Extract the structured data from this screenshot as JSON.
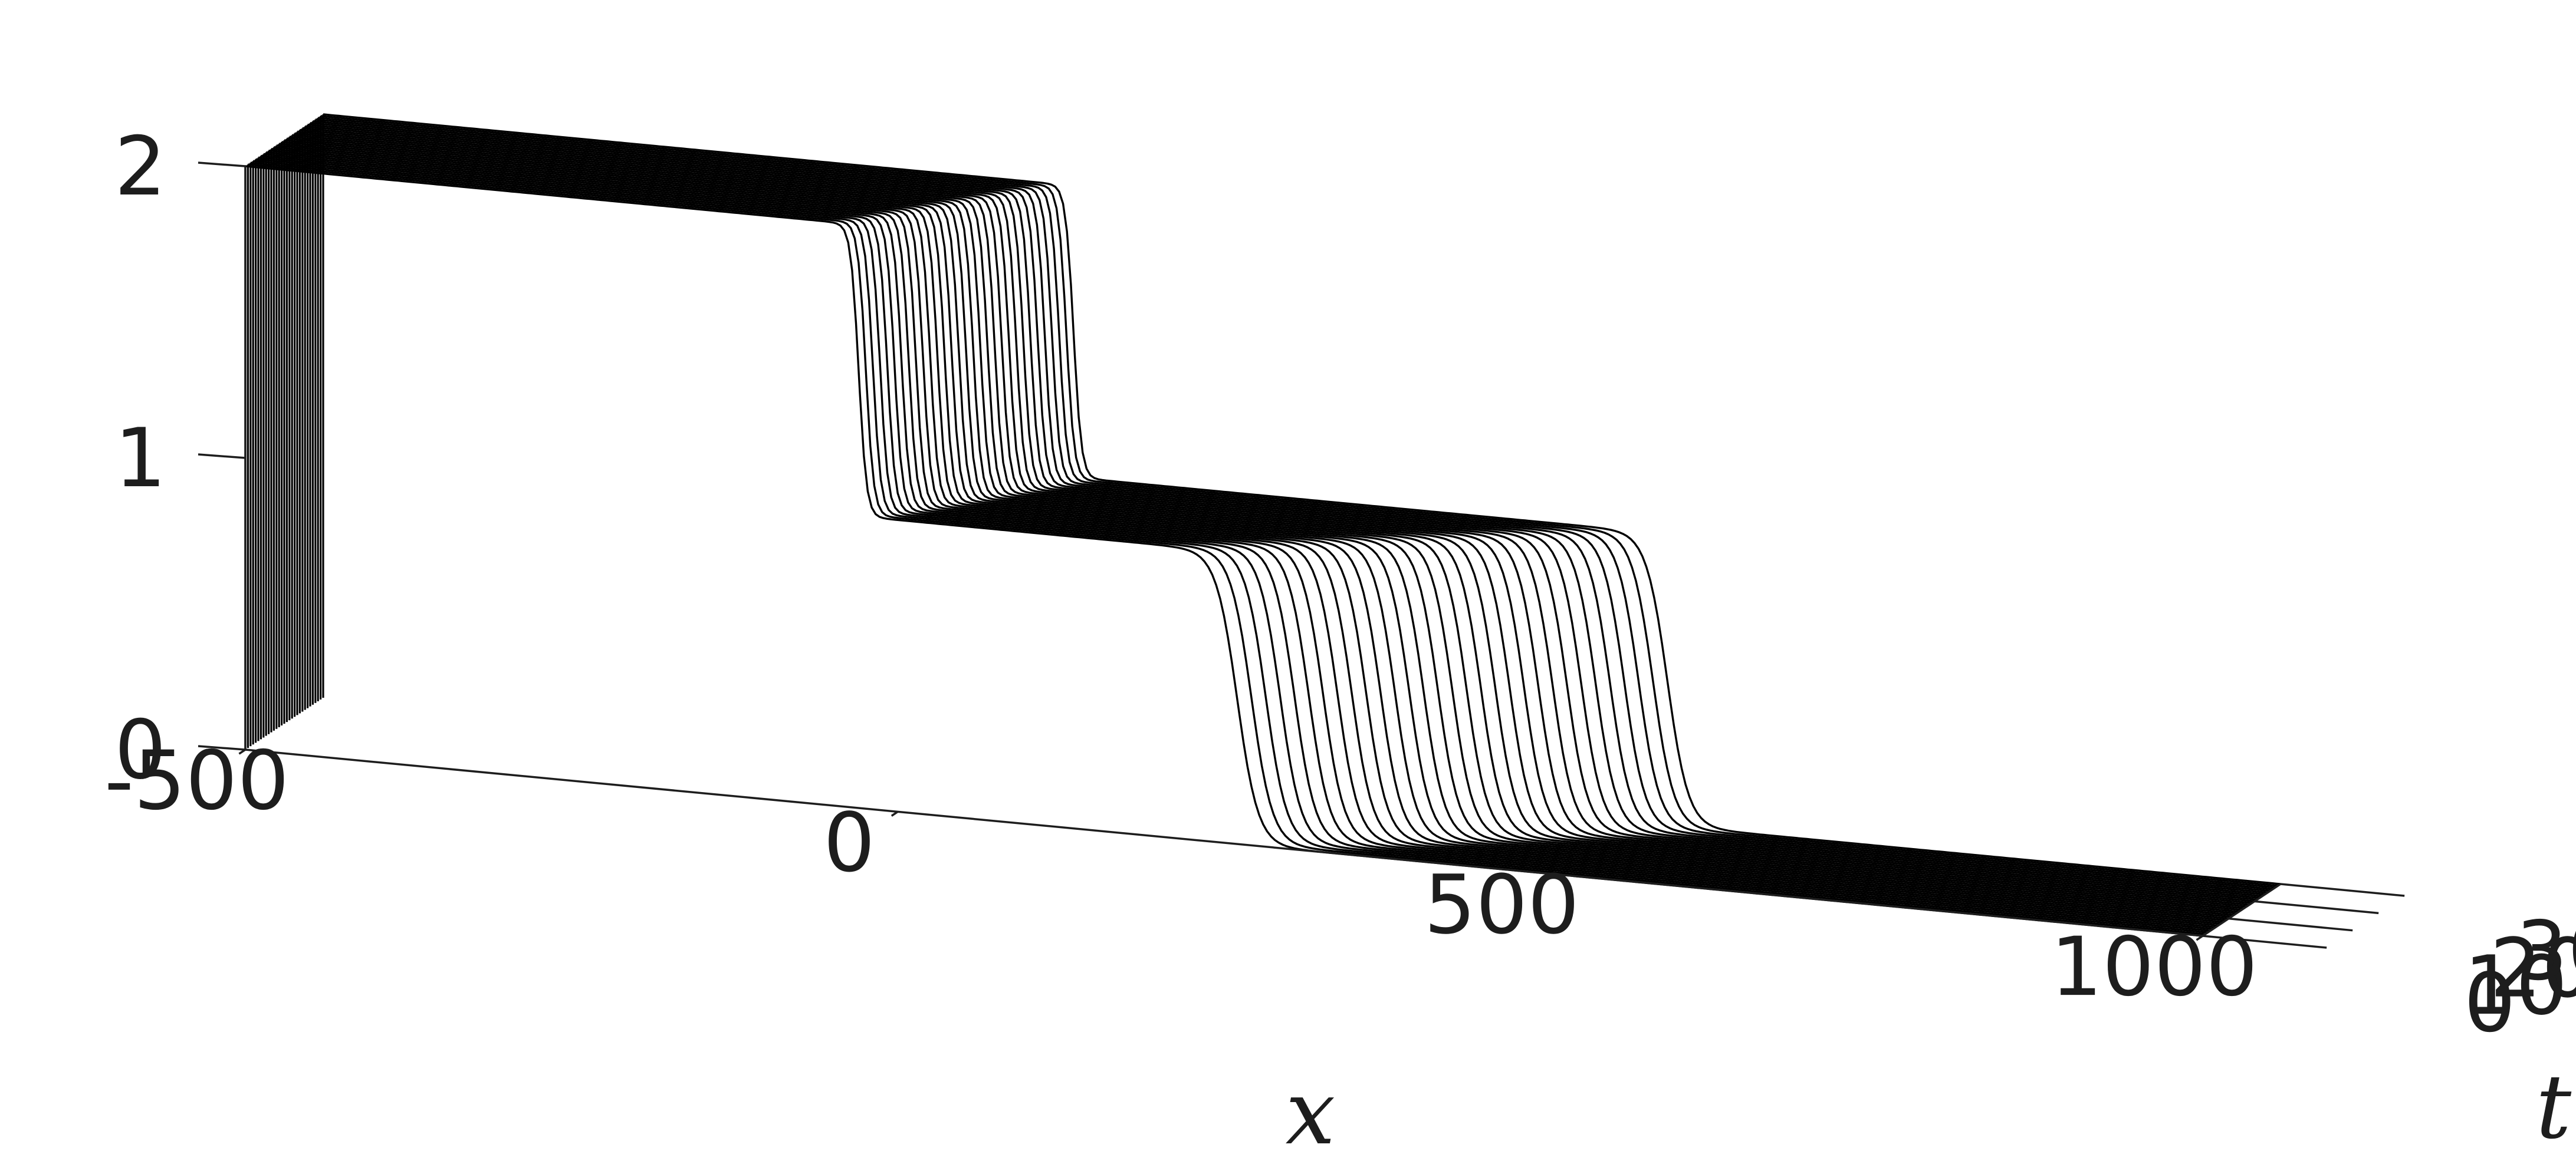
{
  "chart_data": {
    "type": "line",
    "style": "waterfall-3d",
    "title": "",
    "xlabel": "x",
    "ylabel": "t",
    "zlabel": "",
    "xlim": [
      -500,
      1000
    ],
    "ylim": [
      0,
      30
    ],
    "zlim": [
      0,
      2
    ],
    "x_ticks": [
      -500,
      0,
      500,
      1000
    ],
    "y_ticks": [
      0,
      10,
      20,
      30
    ],
    "z_ticks": [
      0,
      1,
      2
    ],
    "x_tick_labels": [
      "-500",
      "0",
      "500",
      "1000"
    ],
    "y_tick_labels": [
      "0",
      "10",
      "20",
      "30"
    ],
    "z_tick_labels": [
      "0",
      "1",
      "2"
    ],
    "grid": false,
    "legend": "none",
    "line_color": "#000000",
    "t_values": [
      0,
      1,
      2,
      3,
      4,
      5,
      6,
      7,
      8,
      9,
      10,
      11,
      12,
      13,
      14,
      15,
      16,
      17,
      18,
      19,
      20,
      21,
      22,
      23,
      24,
      25,
      26,
      27,
      28,
      29,
      30
    ],
    "profile": {
      "left_level": 2,
      "middle_level": 1,
      "right_level": 0,
      "left_front_position_t0": -30,
      "left_front_speed": 3.5,
      "right_front_position_t0": 260,
      "right_front_speed": 9
    }
  }
}
